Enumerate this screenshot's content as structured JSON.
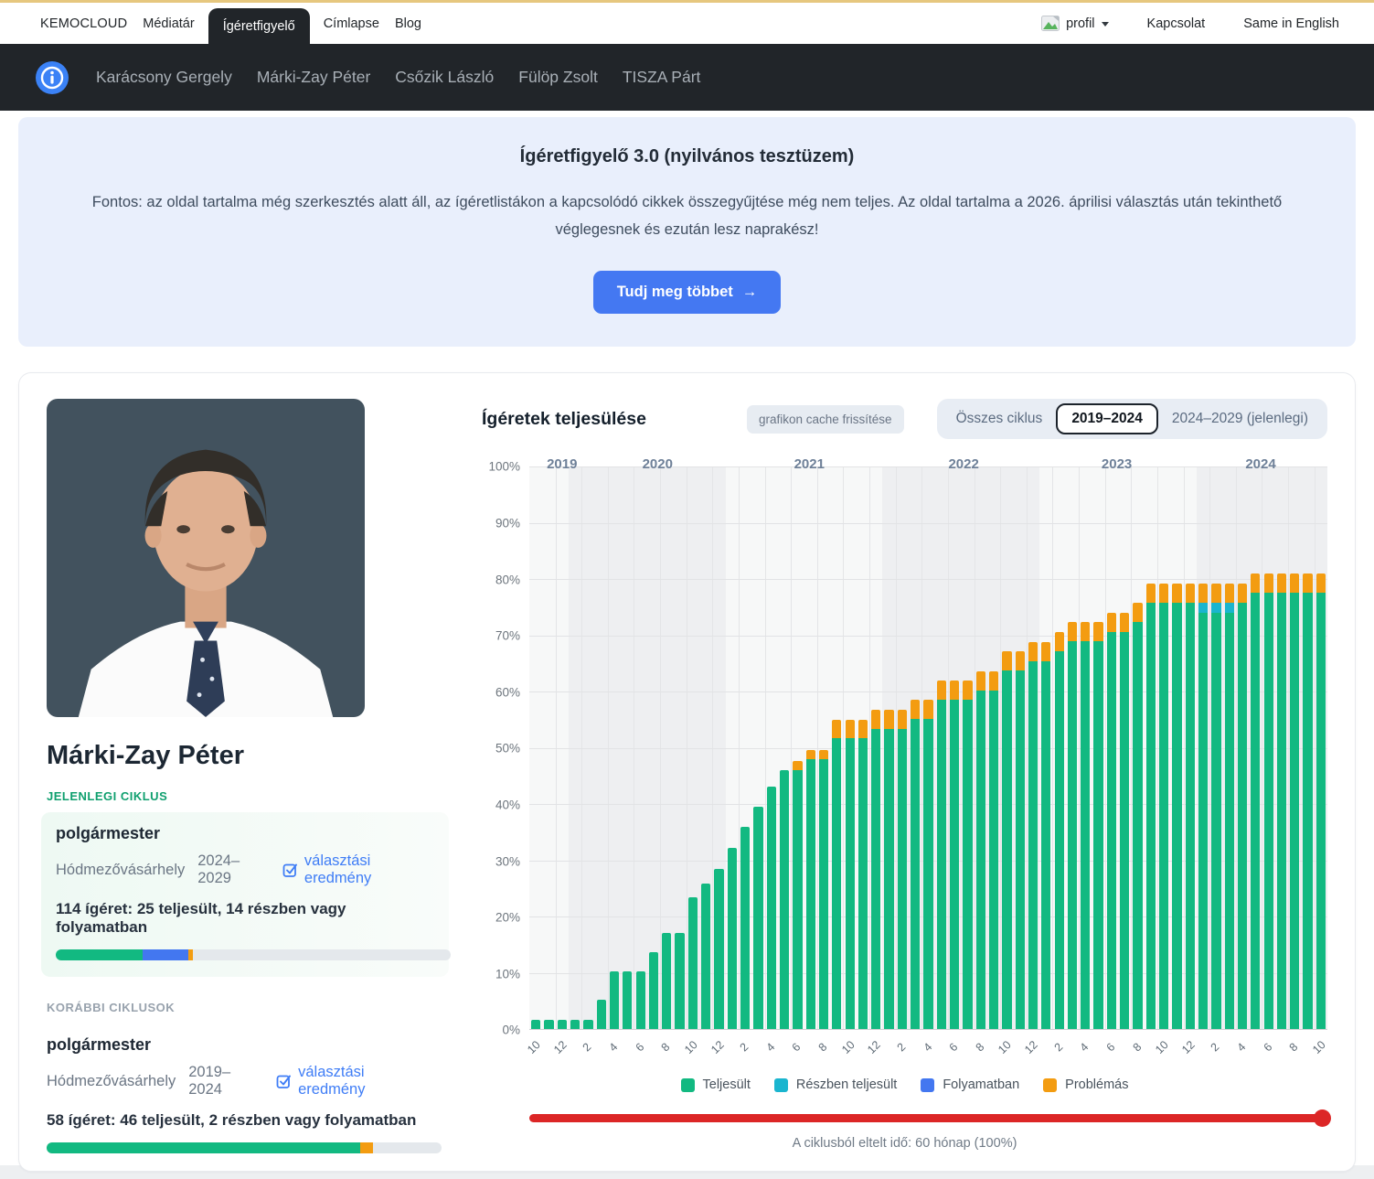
{
  "colors": {
    "accent_top": "#e6c77e",
    "accent_blue": "#4478f2",
    "teljesult": "#12b981",
    "reszben": "#1ab5cf",
    "folyamatban": "#4377f0",
    "problemas": "#f39c11",
    "slider": "#dc2626",
    "dark_nav": "#212529"
  },
  "top_nav": {
    "brand": "KEMOCLOUD",
    "items": [
      "Médiatár",
      "Ígéretfigyelő",
      "Címlapse",
      "Blog"
    ],
    "active_item": "Ígéretfigyelő",
    "profile_label": "profil",
    "contact_label": "Kapcsolat",
    "language_label": "Same in English"
  },
  "politician_nav": {
    "items": [
      "Karácsony Gergely",
      "Márki-Zay Péter",
      "Csőzik László",
      "Fülöp Zsolt",
      "TISZA Párt"
    ]
  },
  "hero": {
    "title": "Ígéretfigyelő 3.0 (nyilvános tesztüzem)",
    "body": "Fontos: az oldal tartalma még szerkesztés alatt áll, az ígéretlistákon a kapcsolódó cikkek összegyűjtése még nem teljes. Az oldal tartalma a 2026. áprilisi választás után tekinthető véglegesnek és ezután lesz naprakész!",
    "button_label": "Tudj meg többet",
    "button_arrow": "→"
  },
  "profile": {
    "name": "Márki-Zay Péter",
    "current_section_label": "JELENLEGI CIKLUS",
    "previous_section_label": "KORÁBBI CIKLUSOK",
    "current": {
      "title": "polgármester",
      "city": "Hódmezővásárhely",
      "term": "2024–2029",
      "link_label": "választási eredmény",
      "summary": "114 ígéret: 25 teljesült, 14 részben vagy folyamatban",
      "progress": [
        {
          "key": "teljesult",
          "pct": 22.0
        },
        {
          "key": "folyamatban",
          "pct": 11.5
        },
        {
          "key": "problemas",
          "pct": 1.3
        }
      ]
    },
    "previous": {
      "title": "polgármester",
      "city": "Hódmezővásárhely",
      "term": "2019–2024",
      "link_label": "választási eredmény",
      "summary": "58 ígéret: 46 teljesült, 2 részben vagy folyamatban",
      "progress": [
        {
          "key": "teljesult",
          "pct": 79.3
        },
        {
          "key": "problemas",
          "pct": 3.4
        }
      ]
    }
  },
  "chart": {
    "title": "Ígéretek teljesülése",
    "cache_button": "grafikon cache frissítése",
    "toggles": [
      "Összes ciklus",
      "2019–2024",
      "2024–2029 (jelenlegi)"
    ],
    "selected_toggle": "2019–2024",
    "slider_caption": "A ciklusból eltelt idő: 60 hónap (100%)"
  },
  "chart_data": {
    "type": "bar",
    "stacked": true,
    "title": "Ígéretek teljesülése",
    "ylim": [
      0,
      100
    ],
    "y_ticks": [
      "0%",
      "10%",
      "20%",
      "30%",
      "40%",
      "50%",
      "60%",
      "70%",
      "80%",
      "90%",
      "100%"
    ],
    "legend_position": "bottom",
    "grid": true,
    "months": [
      "2019-10",
      "2019-11",
      "2019-12",
      "2020-01",
      "2020-02",
      "2020-03",
      "2020-04",
      "2020-05",
      "2020-06",
      "2020-07",
      "2020-08",
      "2020-09",
      "2020-10",
      "2020-11",
      "2020-12",
      "2021-01",
      "2021-02",
      "2021-03",
      "2021-04",
      "2021-05",
      "2021-06",
      "2021-07",
      "2021-08",
      "2021-09",
      "2021-10",
      "2021-11",
      "2021-12",
      "2022-01",
      "2022-02",
      "2022-03",
      "2022-04",
      "2022-05",
      "2022-06",
      "2022-07",
      "2022-08",
      "2022-09",
      "2022-10",
      "2022-11",
      "2022-12",
      "2023-01",
      "2023-02",
      "2023-03",
      "2023-04",
      "2023-05",
      "2023-06",
      "2023-07",
      "2023-08",
      "2023-09",
      "2023-10",
      "2023-11",
      "2023-12",
      "2024-01",
      "2024-02",
      "2024-03",
      "2024-04",
      "2024-05",
      "2024-06",
      "2024-07",
      "2024-08",
      "2024-09",
      "2024-10"
    ],
    "year_bands": [
      {
        "label": "2019",
        "start": 0,
        "end": 3,
        "shade": "light",
        "label_slot": 2.5
      },
      {
        "label": "2020",
        "start": 3,
        "end": 15,
        "shade": "dark",
        "label_slot": 9.8
      },
      {
        "label": "2021",
        "start": 15,
        "end": 27,
        "shade": "light",
        "label_slot": 21.4
      },
      {
        "label": "2022",
        "start": 27,
        "end": 39,
        "shade": "dark",
        "label_slot": 33.2
      },
      {
        "label": "2023",
        "start": 39,
        "end": 51,
        "shade": "light",
        "label_slot": 44.9
      },
      {
        "label": "2024",
        "start": 51,
        "end": 61,
        "shade": "dark",
        "label_slot": 55.9
      }
    ],
    "series": [
      {
        "name": "Teljesült",
        "color": "#12b981",
        "values": [
          1.7,
          1.7,
          1.7,
          1.7,
          1.7,
          5.2,
          10.3,
          10.3,
          10.3,
          13.8,
          17.2,
          17.2,
          23.5,
          25.9,
          28.5,
          32.2,
          36.0,
          39.5,
          43.1,
          46.0,
          46.0,
          48.0,
          48.0,
          51.7,
          51.7,
          51.7,
          53.4,
          53.4,
          53.4,
          55.2,
          55.2,
          58.6,
          58.6,
          58.6,
          60.3,
          60.3,
          63.8,
          63.8,
          65.5,
          65.5,
          67.2,
          69.0,
          69.0,
          69.0,
          70.7,
          70.7,
          72.4,
          75.9,
          75.9,
          75.9,
          75.9,
          74.1,
          74.1,
          74.1,
          75.9,
          77.6,
          77.6,
          77.6,
          77.6,
          77.6,
          77.6
        ]
      },
      {
        "name": "Részben teljesült",
        "color": "#1ab5cf",
        "values": [
          0,
          0,
          0,
          0,
          0,
          0,
          0,
          0,
          0,
          0,
          0,
          0,
          0,
          0,
          0,
          0,
          0,
          0,
          0,
          0,
          0,
          0,
          0,
          0,
          0,
          0,
          0,
          0,
          0,
          0,
          0,
          0,
          0,
          0,
          0,
          0,
          0,
          0,
          0,
          0,
          0,
          0,
          0,
          0,
          0,
          0,
          0,
          0,
          0,
          0,
          0,
          1.7,
          1.7,
          1.7,
          0,
          0,
          0,
          0,
          0,
          0,
          0
        ]
      },
      {
        "name": "Folyamatban",
        "color": "#4377f0",
        "values": [
          0,
          0,
          0,
          0,
          0,
          0,
          0,
          0,
          0,
          0,
          0,
          0,
          0,
          0,
          0,
          0,
          0,
          0,
          0,
          0,
          0,
          0,
          0,
          0,
          0,
          0,
          0,
          0,
          0,
          0,
          0,
          0,
          0,
          0,
          0,
          0,
          0,
          0,
          0,
          0,
          0,
          0,
          0,
          0,
          0,
          0,
          0,
          0,
          0,
          0,
          0,
          0,
          0,
          0,
          0,
          0,
          0,
          0,
          0,
          0,
          0
        ]
      },
      {
        "name": "Problémás",
        "color": "#f39c11",
        "values": [
          0,
          0,
          0,
          0,
          0,
          0,
          0,
          0,
          0,
          0,
          0,
          0,
          0,
          0,
          0,
          0,
          0,
          0,
          0,
          0,
          1.7,
          1.7,
          1.7,
          3.4,
          3.4,
          3.4,
          3.4,
          3.4,
          3.4,
          3.4,
          3.4,
          3.4,
          3.4,
          3.4,
          3.4,
          3.4,
          3.4,
          3.4,
          3.4,
          3.4,
          3.4,
          3.4,
          3.4,
          3.4,
          3.4,
          3.4,
          3.4,
          3.4,
          3.4,
          3.4,
          3.4,
          3.4,
          3.4,
          3.4,
          3.4,
          3.4,
          3.4,
          3.4,
          3.4,
          3.4,
          3.4
        ]
      }
    ]
  }
}
